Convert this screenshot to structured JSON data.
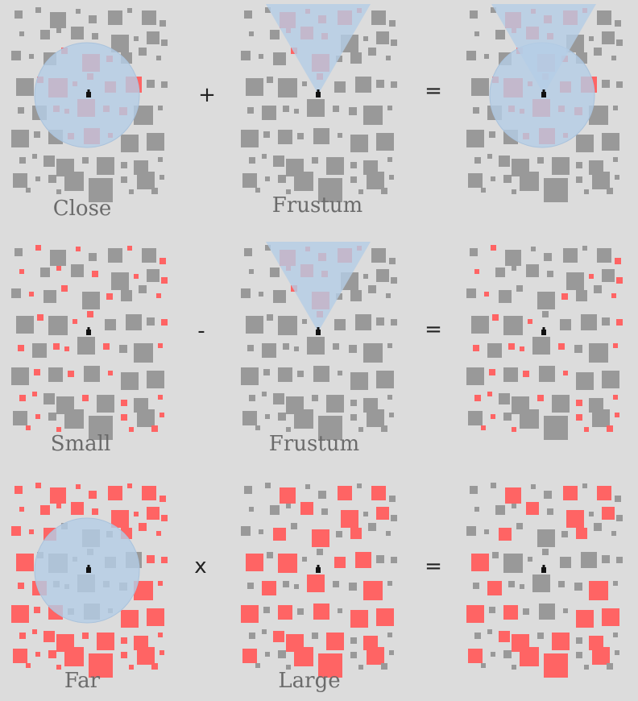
{
  "colors": {
    "background": "#dcdcdc",
    "object_default": "#999999",
    "object_selected": "#ff6464",
    "query_region": "#b4cde6",
    "query_region_opacity": 0.8,
    "label_text": "#6b6b6b",
    "operator_text": "#222222",
    "camera": "#111111"
  },
  "operations": [
    {
      "left": {
        "label": "Close",
        "region": "circle",
        "highlight": "inside_circle"
      },
      "operator": "+",
      "right": {
        "label": "Frustum",
        "region": "frustum",
        "highlight": "inside_frustum"
      },
      "equals": "=",
      "result": {
        "label": "",
        "region": "circle+frustum",
        "highlight": "union"
      }
    },
    {
      "left": {
        "label": "Small",
        "region": "none",
        "highlight": "small"
      },
      "operator": "-",
      "right": {
        "label": "Frustum",
        "region": "frustum",
        "highlight": "inside_frustum"
      },
      "equals": "=",
      "result": {
        "label": "",
        "region": "none",
        "highlight": "small_minus_frustum"
      }
    },
    {
      "left": {
        "label": "Far",
        "region": "circle",
        "highlight": "outside_circle"
      },
      "operator": "x",
      "right": {
        "label": "Large",
        "region": "none",
        "highlight": "large"
      },
      "equals": "=",
      "result": {
        "label": "",
        "region": "none",
        "highlight": "far_and_large"
      }
    }
  ]
}
